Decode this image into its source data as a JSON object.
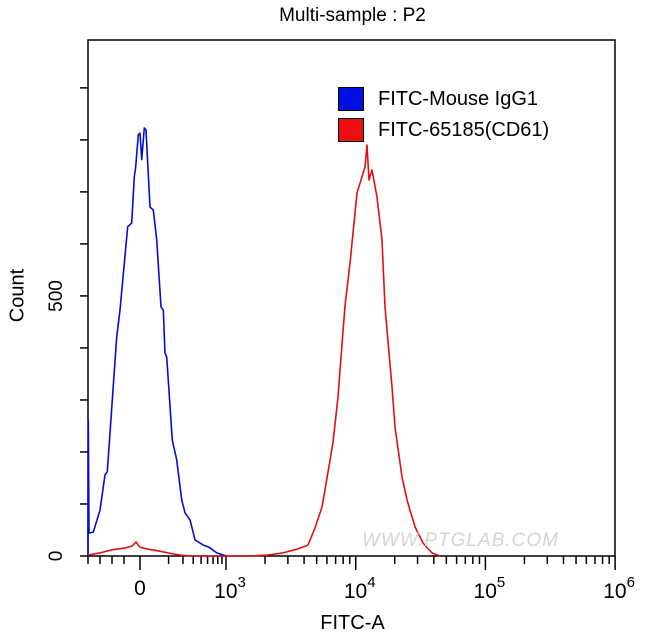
{
  "chart_data": {
    "type": "line",
    "title": "Multi-sample : P2",
    "xlabel": "FITC-A",
    "ylabel": "Count",
    "x_scale": "biexponential",
    "xlim": [
      -605,
      1000000
    ],
    "ylim": [
      0,
      992
    ],
    "grid": false,
    "legend_position": "top-right",
    "x_ticks": [
      {
        "base": "0",
        "exp": ""
      },
      {
        "base": "10",
        "exp": "3"
      },
      {
        "base": "10",
        "exp": "4"
      },
      {
        "base": "10",
        "exp": "5"
      },
      {
        "base": "10",
        "exp": "6"
      }
    ],
    "x_tick_values": [
      0,
      1000,
      10000,
      100000,
      1000000
    ],
    "y_ticks": [
      "0",
      "500"
    ],
    "y_tick_values": [
      0,
      500
    ],
    "y_minor_step": 100,
    "series": [
      {
        "name": "FITC-Mouse IgG1",
        "color": "#0010d0",
        "x": [
          -605,
          -601,
          -593,
          -543,
          -465,
          -407,
          -380,
          -271,
          -233,
          -143,
          -97,
          -66,
          -50,
          -20,
          0,
          20,
          50,
          70,
          116,
          155,
          194,
          244,
          271,
          291,
          311,
          376,
          427,
          485,
          523,
          582,
          640,
          736,
          803,
          892,
          1009
        ],
        "y": [
          0,
          262,
          44,
          46,
          88,
          156,
          162,
          421,
          473,
          633,
          640,
          729,
          748,
          810,
          813,
          762,
          823,
          819,
          671,
          665,
          608,
          479,
          473,
          390,
          383,
          223,
          185,
          108,
          83,
          69,
          31,
          21,
          17,
          6,
          0
        ]
      },
      {
        "name": "FITC-65185(CD61)",
        "color": "#e01010",
        "x": [
          -605,
          -465,
          -326,
          -186,
          -93,
          -47,
          0,
          93,
          209,
          326,
          465,
          582,
          1531,
          2107,
          2748,
          3524,
          4285,
          4853,
          5495,
          6108,
          6683,
          7305,
          8260,
          9036,
          10234,
          11190,
          11800,
          12220,
          12670,
          13360,
          14600,
          15950,
          16830,
          19060,
          20100,
          22750,
          24870,
          28650,
          33040,
          38740,
          44670
        ],
        "y": [
          2,
          6,
          12,
          15,
          19,
          27,
          17,
          13,
          10,
          6,
          2,
          0,
          0,
          2,
          6,
          13,
          21,
          54,
          94,
          160,
          218,
          306,
          479,
          563,
          698,
          729,
          748,
          790,
          723,
          742,
          690,
          608,
          479,
          325,
          248,
          152,
          108,
          56,
          25,
          6,
          0
        ]
      }
    ],
    "watermark": "WWW.PTGLAB.COM"
  }
}
